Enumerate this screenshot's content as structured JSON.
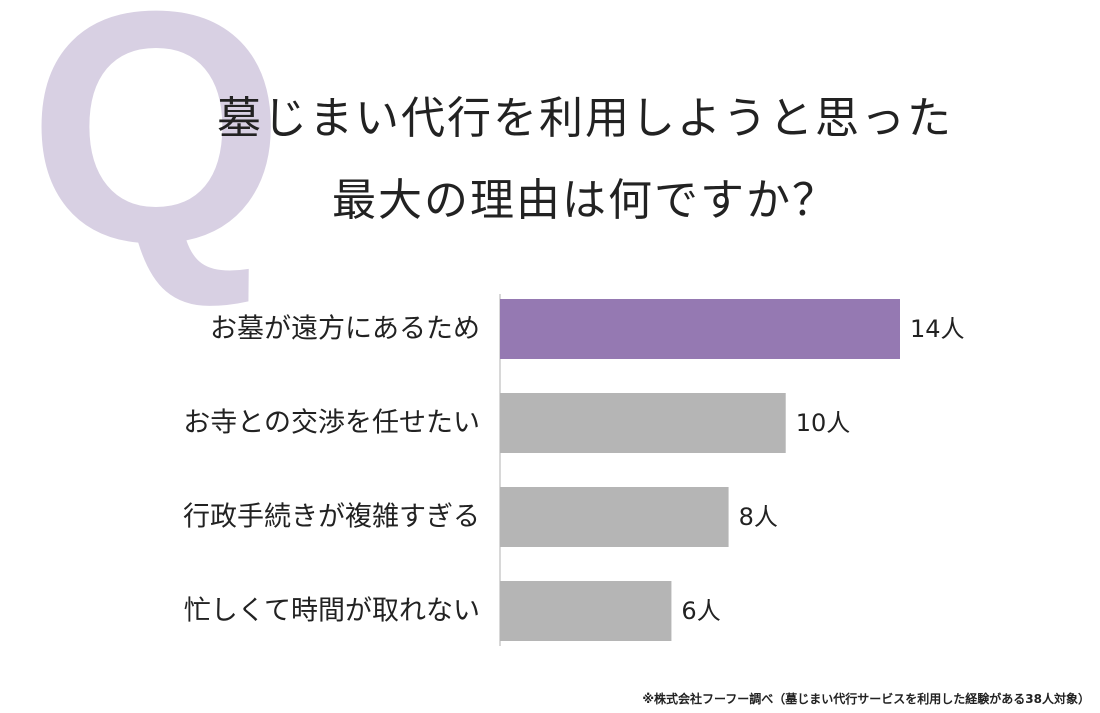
{
  "q_letter": "Q",
  "title_lines": [
    "墓じまい代行を利用しようと思った",
    "最大の理由は何ですか？"
  ],
  "footnote": "※株式会社フーフー調べ（墓じまい代行サービスを利用した経験がある38人対象）",
  "colors": {
    "highlight": "#9579b2",
    "bar": "#b5b5b5",
    "q_mark": "#d8d0e3",
    "axis": "#cccccc"
  },
  "chart_data": {
    "type": "bar",
    "orientation": "horizontal",
    "categories": [
      "お墓が遠方にあるため",
      "お寺との交渉を任せたい",
      "行政手続きが複雑すぎる",
      "忙しくて時間が取れない"
    ],
    "values": [
      14,
      10,
      8,
      6
    ],
    "value_labels": [
      "14人",
      "10人",
      "8人",
      "6人"
    ],
    "highlight_index": 0,
    "xlim": [
      0,
      14
    ]
  }
}
